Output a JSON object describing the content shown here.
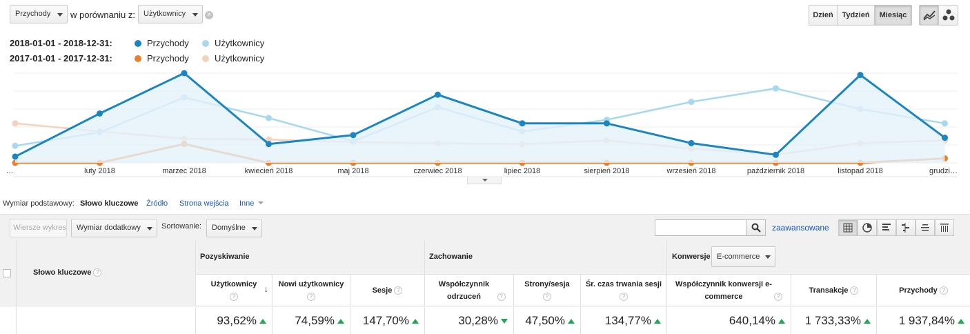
{
  "controls": {
    "metric1": "Przychody",
    "compare_label": "w porównaniu z:",
    "metric2": "Użytkownicy",
    "clear_icon": "×",
    "granularity": [
      "Dzień",
      "Tydzień",
      "Miesiąc"
    ],
    "active_granularity": "Miesiąc",
    "chart_type_icons": [
      "line-chart-icon",
      "motion-chart-icon"
    ]
  },
  "legend": {
    "rows": [
      {
        "date_range": "2018-01-01 - 2018-12-31:",
        "items": [
          {
            "label": "Przychody",
            "color": "#1b85c1"
          },
          {
            "label": "Użytkownicy",
            "color": "#a6d8f0"
          }
        ]
      },
      {
        "date_range": "2017-01-01 - 2017-12-31:",
        "items": [
          {
            "label": "Przychody",
            "color": "#e8802c"
          },
          {
            "label": "Użytkownicy",
            "color": "#f2d3bd"
          }
        ]
      }
    ]
  },
  "chart_data": {
    "type": "line",
    "categories": [
      "…",
      "luty 2018",
      "marzec 2018",
      "kwiecień 2018",
      "maj 2018",
      "czerwiec 2018",
      "lipiec 2018",
      "sierpień 2018",
      "wrzesień 2018",
      "październik 2018",
      "listopad 2018",
      "grudzi…"
    ],
    "ylim": [
      0,
      100
    ],
    "series": [
      {
        "name": "Przychody",
        "period": "2018",
        "color": "#1b85c1",
        "fill": true,
        "values": [
          7,
          55,
          100,
          21,
          31,
          76,
          44,
          44,
          22,
          9,
          98,
          28
        ]
      },
      {
        "name": "Użytkownicy",
        "period": "2018",
        "color": "#a6d8f0",
        "values": [
          19,
          34,
          73,
          50,
          24,
          62,
          35,
          48,
          68,
          83,
          60,
          44
        ]
      },
      {
        "name": "Przychody",
        "period": "2017",
        "color": "#e8802c",
        "values": [
          0,
          0,
          21,
          0,
          0,
          0,
          0,
          0,
          0,
          0,
          0,
          5
        ]
      },
      {
        "name": "Użytkownicy",
        "period": "2017",
        "color": "#f2d3bd",
        "values": [
          44,
          35,
          27,
          26,
          23,
          22,
          21,
          25,
          16,
          9,
          22,
          25
        ]
      }
    ]
  },
  "primary_dimension": {
    "label": "Wymiar podstawowy:",
    "active": "Słowo kluczowe",
    "links": [
      "Źródło",
      "Strona wejścia"
    ],
    "other": "Inne"
  },
  "toolbar": {
    "plot_rows": "Wiersze wykresu",
    "secondary_dimension": "Wymiar dodatkowy",
    "sort_label": "Sortowanie:",
    "sort_value": "Domyślne",
    "search_placeholder": "",
    "advanced": "zaawansowane",
    "view_icons": [
      "grid-view-icon",
      "pie-view-icon",
      "bar-view-icon",
      "comparison-view-icon",
      "term-cloud-icon",
      "pivot-view-icon"
    ]
  },
  "table": {
    "dimension_header": "Słowo kluczowe",
    "groups": {
      "acquisition": "Pozyskiwanie",
      "behavior": "Zachowanie",
      "conversions": "Konwersje",
      "conversions_select": "E-commerce"
    },
    "columns": [
      {
        "label": "Użytkownicy",
        "value": "93,62%",
        "trend": "up"
      },
      {
        "label": "Nowi użytkownicy",
        "value": "74,59%",
        "trend": "up"
      },
      {
        "label": "Sesje",
        "value": "147,70%",
        "trend": "up"
      },
      {
        "label": "Współczynnik odrzuceń",
        "value": "30,28%",
        "trend": "down"
      },
      {
        "label": "Strony/sesja",
        "value": "47,50%",
        "trend": "up"
      },
      {
        "label": "Śr. czas trwania sesji",
        "value": "134,77%",
        "trend": "up"
      },
      {
        "label": "Współczynnik konwersji e-commerce",
        "value": "640,14%",
        "trend": "up"
      },
      {
        "label": "Transakcje",
        "value": "1 733,33%",
        "trend": "up"
      },
      {
        "label": "Przychody",
        "value": "1 937,84%",
        "trend": "up"
      }
    ]
  }
}
